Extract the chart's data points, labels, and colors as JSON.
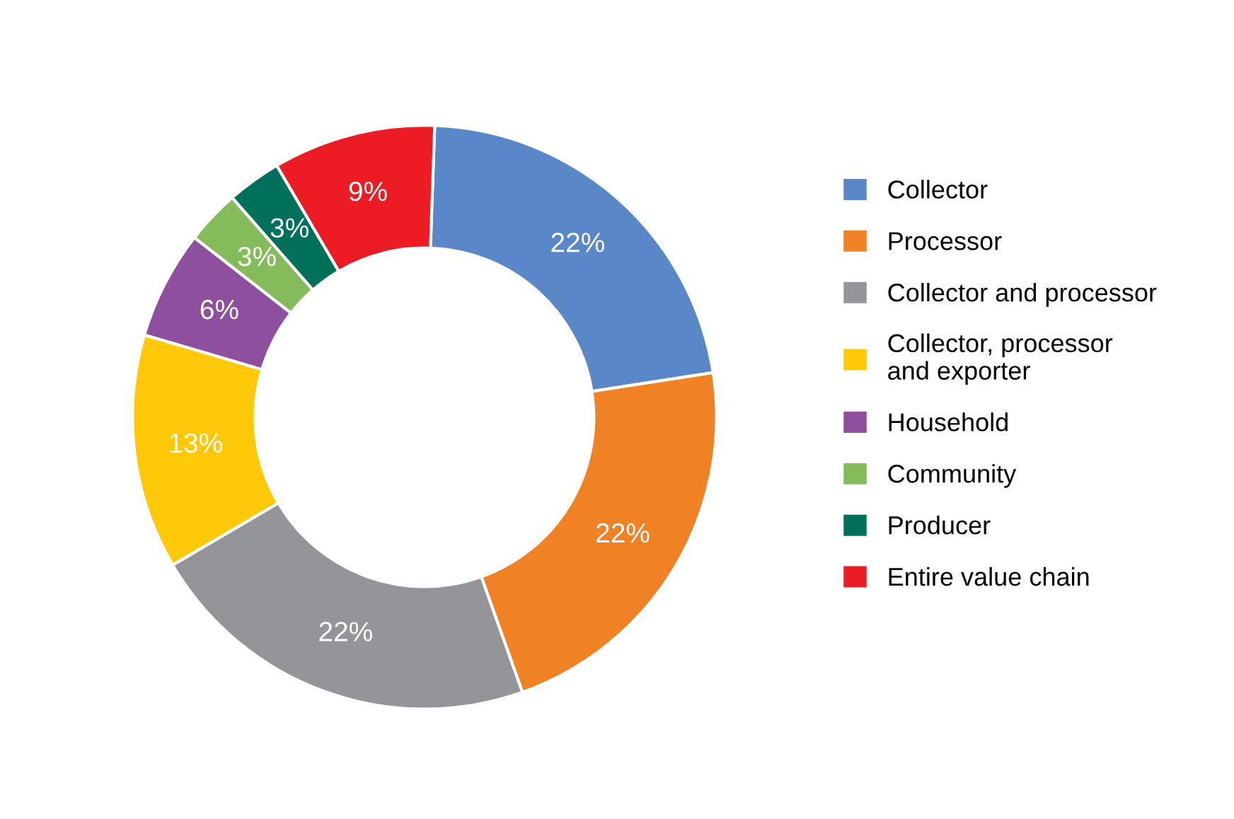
{
  "chart_data": {
    "type": "donut",
    "categories": [
      "Collector",
      "Processor",
      "Collector and processor",
      "Collector, processor\nand exporter",
      "Household",
      "Community",
      "Producer",
      "Entire value chain"
    ],
    "values": [
      22,
      22,
      22,
      13,
      6,
      3,
      3,
      9
    ],
    "value_labels": [
      "22%",
      "22%",
      "22%",
      "13%",
      "6%",
      "3%",
      "3%",
      "9%"
    ],
    "colors": [
      "#5a87c8",
      "#f08124",
      "#939598",
      "#ffc90a",
      "#8e4f9e",
      "#85bb5b",
      "#00705a",
      "#ec1c24"
    ],
    "legend": "right"
  }
}
